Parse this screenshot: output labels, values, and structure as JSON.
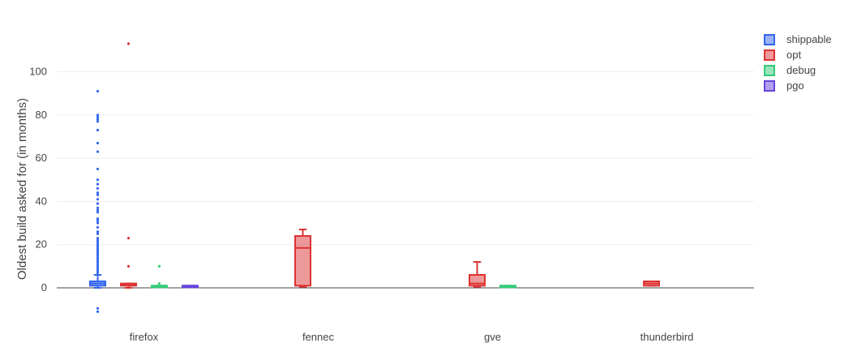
{
  "chart_data": {
    "type": "box",
    "title": "",
    "xlabel": "",
    "ylabel": "Oldest build asked for (in months)",
    "ylim": [
      -12,
      120
    ],
    "yticks": [
      0,
      20,
      40,
      60,
      80,
      100
    ],
    "grid": true,
    "legend_position": "top-right",
    "categories": [
      "firefox",
      "fennec",
      "gve",
      "thunderbird"
    ],
    "series": [
      {
        "name": "shippable",
        "color": "#3366ee",
        "boxes": [
          {
            "category": "firefox",
            "min": 0,
            "q1": 1,
            "median": 2,
            "q3": 3,
            "max": 6,
            "outliers": [
              -11,
              -9.5,
              7,
              8,
              9,
              10,
              11,
              12,
              13,
              14,
              15,
              16,
              17,
              18,
              19,
              20,
              21,
              22,
              23,
              25,
              26,
              28,
              30,
              31,
              32,
              35,
              36,
              37,
              39,
              41,
              43,
              44,
              46,
              48,
              50,
              55,
              63,
              67,
              73,
              77,
              78,
              79,
              80,
              91
            ]
          }
        ]
      },
      {
        "name": "opt",
        "color": "#dd3333",
        "boxes": [
          {
            "category": "firefox",
            "min": 0,
            "q1": 1,
            "median": 1.5,
            "q3": 2,
            "max": 2,
            "outliers": [
              10,
              23,
              113
            ]
          },
          {
            "category": "fennec",
            "min": 0.5,
            "q1": 1,
            "median": 18.5,
            "q3": 24,
            "max": 27,
            "outliers": []
          },
          {
            "category": "gve",
            "min": 0.5,
            "q1": 1,
            "median": 2,
            "q3": 6,
            "max": 12,
            "outliers": []
          },
          {
            "category": "thunderbird",
            "min": 1,
            "q1": 1,
            "median": 2,
            "q3": 3,
            "max": 3,
            "outliers": []
          }
        ]
      },
      {
        "name": "debug",
        "color": "#33cc77",
        "boxes": [
          {
            "category": "firefox",
            "min": 0.5,
            "q1": 0.5,
            "median": 1,
            "q3": 1,
            "max": 1,
            "outliers": [
              2,
              10
            ]
          },
          {
            "category": "gve",
            "min": 0.5,
            "q1": 0.5,
            "median": 1,
            "q3": 1,
            "max": 1,
            "outliers": []
          }
        ]
      },
      {
        "name": "pgo",
        "color": "#6644dd",
        "boxes": [
          {
            "category": "firefox",
            "min": 0.5,
            "q1": 0.5,
            "median": 1,
            "q3": 1,
            "max": 1,
            "outliers": []
          }
        ]
      }
    ]
  }
}
